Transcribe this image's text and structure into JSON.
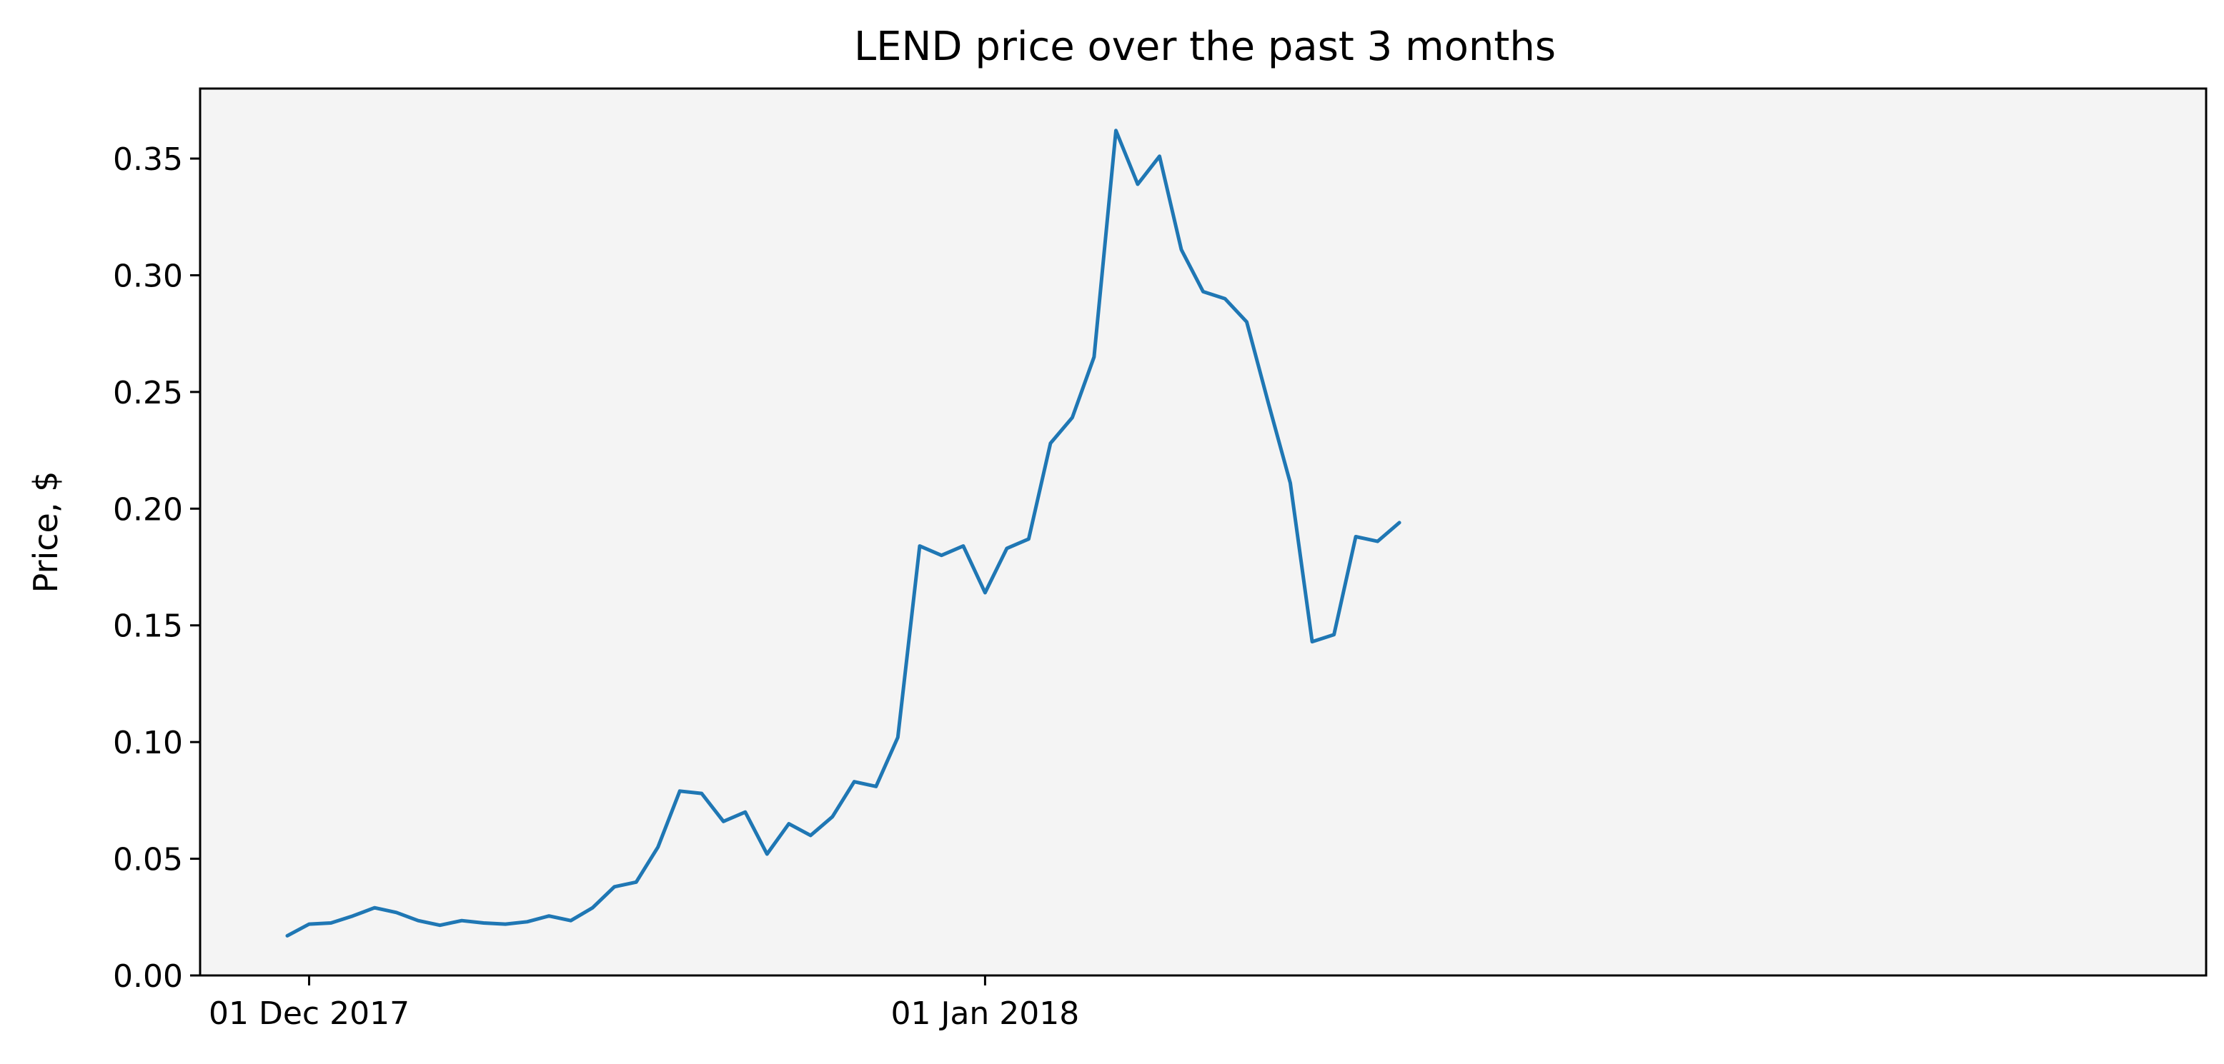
{
  "chart_data": {
    "type": "line",
    "title": "LEND price over the past 3 months",
    "xlabel": "",
    "ylabel": "Price, $",
    "x_start": "2017-11-30",
    "x_step_days": 1,
    "xlim": [
      "2017-11-26",
      "2018-02-26"
    ],
    "ylim": [
      0,
      0.38
    ],
    "yticks": [
      0.0,
      0.05,
      0.1,
      0.15,
      0.2,
      0.25,
      0.3,
      0.35
    ],
    "ytick_labels": [
      "0.00",
      "0.05",
      "0.10",
      "0.15",
      "0.20",
      "0.25",
      "0.30",
      "0.35"
    ],
    "xticks": [
      {
        "date": "2017-12-01",
        "label": "01 Dec 2017"
      },
      {
        "date": "2018-01-01",
        "label": "01 Jan 2018"
      }
    ],
    "grid": false,
    "legend": "none",
    "colors": {
      "line": "#1f77b4",
      "plot_background": "#f4f4f4",
      "axes": "#000000"
    },
    "series": [
      {
        "values": [
          0.017,
          0.022,
          0.0225,
          0.0255,
          0.029,
          0.027,
          0.0235,
          0.0215,
          0.0235,
          0.0225,
          0.022,
          0.023,
          0.0255,
          0.0235,
          0.029,
          0.038,
          0.04,
          0.055,
          0.079,
          0.078,
          0.066,
          0.07,
          0.052,
          0.065,
          0.06,
          0.068,
          0.083,
          0.081,
          0.102,
          0.184,
          0.18,
          0.184,
          0.164,
          0.183,
          0.187,
          0.228,
          0.239,
          0.265,
          0.362,
          0.339,
          0.351,
          0.311,
          0.293,
          0.29,
          0.28,
          0.245,
          0.211,
          0.143,
          0.146,
          0.188,
          0.186,
          0.194
        ]
      }
    ]
  }
}
